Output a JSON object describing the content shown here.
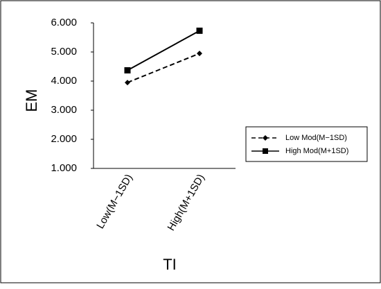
{
  "chart_data": {
    "type": "line",
    "y_label": "EM",
    "x_label": "TI",
    "categories": [
      "Low(M−1SD)",
      "High(M+1SD)"
    ],
    "series": [
      {
        "name": "Low Mod(M−1SD)",
        "color": "#000000",
        "line_style": "dashed",
        "marker": "diamond",
        "values": [
          3.95,
          4.95
        ]
      },
      {
        "name": "High Mod(M+1SD)",
        "color": "#000000",
        "line_style": "solid",
        "marker": "square",
        "values": [
          4.37,
          5.73
        ]
      }
    ],
    "ylim": [
      1,
      6
    ],
    "yticks": [
      {
        "value": 1,
        "label": "1.000"
      },
      {
        "value": 2,
        "label": "2.000"
      },
      {
        "value": 3,
        "label": "3.000"
      },
      {
        "value": 4,
        "label": "4.000"
      },
      {
        "value": 5,
        "label": "5.000"
      },
      {
        "value": 6,
        "label": "6.000"
      }
    ],
    "grid": false,
    "legend": "right"
  }
}
